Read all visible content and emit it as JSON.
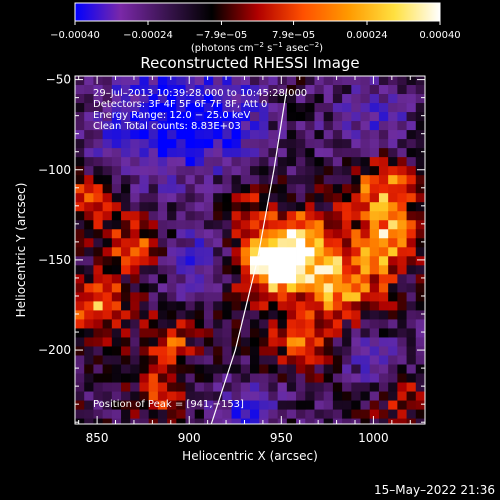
{
  "chart_data": {
    "type": "heatmap",
    "title": "Reconstructed RHESSI Image",
    "xlabel": "Heliocentric X (arcsec)",
    "ylabel": "Heliocentric Y (arcsec)",
    "xlim": [
      838,
      1028
    ],
    "ylim": [
      -241,
      -48
    ],
    "x_ticks": [
      850,
      900,
      950,
      1000
    ],
    "x_tick_labels": [
      "850",
      "900",
      "950",
      "1000"
    ],
    "y_ticks": [
      -50,
      -100,
      -150,
      -200
    ],
    "y_tick_labels": [
      "−50",
      "−100",
      "−150",
      "−200"
    ],
    "colorbar": {
      "range": [
        -0.0004,
        0.0004
      ],
      "ticks": [
        -0.0004,
        -0.00024,
        -7.9e-05,
        7.9e-05,
        0.00024,
        0.0004
      ],
      "tick_labels": [
        "−0.00040",
        "−0.00024",
        "−7.9e−05",
        "7.9e−05",
        "0.00024",
        "0.00040"
      ],
      "colors": [
        "#0000ff",
        "#7a28a8",
        "#3a1450",
        "#000000",
        "#b00000",
        "#ff5000",
        "#ff9a00",
        "#ffe040",
        "#ffffff"
      ]
    },
    "units": {
      "pre": "(photons cm",
      "sup1": "−2",
      "mid1": " s",
      "sup2": "−1",
      "mid2": " asec",
      "sup3": "−2",
      "post": ")"
    },
    "annotations": [
      "29–Jul–2013 10:39:28.000 to  10:45:28.000",
      "Detectors: 3F 4F 5F 6F 7F 8F, Att 0",
      "Energy Range: 12.0 − 25.0 keV",
      "Clean     Total counts: 8.83E+03"
    ],
    "peak_label": "Position of Peak = [941,−153]",
    "peak": {
      "x": 941,
      "y": -153
    },
    "limb_points": [
      [
        912,
        -241
      ],
      [
        925,
        -200
      ],
      [
        937,
        -150
      ],
      [
        946,
        -100
      ],
      [
        953,
        -55
      ]
    ],
    "grid_step": 5,
    "hot_sources": [
      {
        "x": 942,
        "y": -152,
        "amp": 1.0,
        "sigma": 13
      },
      {
        "x": 960,
        "y": -142,
        "amp": 0.75,
        "sigma": 14
      },
      {
        "x": 985,
        "y": -165,
        "amp": 0.72,
        "sigma": 16
      },
      {
        "x": 1005,
        "y": -110,
        "amp": 0.72,
        "sigma": 14
      },
      {
        "x": 1008,
        "y": -140,
        "amp": 0.65,
        "sigma": 11
      },
      {
        "x": 870,
        "y": -140,
        "amp": 0.55,
        "sigma": 12
      },
      {
        "x": 845,
        "y": -115,
        "amp": 0.6,
        "sigma": 10
      },
      {
        "x": 850,
        "y": -175,
        "amp": 0.7,
        "sigma": 11
      },
      {
        "x": 890,
        "y": -195,
        "amp": 0.5,
        "sigma": 10
      },
      {
        "x": 930,
        "y": -120,
        "amp": 0.4,
        "sigma": 10
      },
      {
        "x": 960,
        "y": -195,
        "amp": 0.5,
        "sigma": 12
      },
      {
        "x": 885,
        "y": -225,
        "amp": 0.5,
        "sigma": 10
      },
      {
        "x": 1015,
        "y": -225,
        "amp": 0.45,
        "sigma": 12
      }
    ],
    "cold_sources": [
      {
        "x": 880,
        "y": -75,
        "amp": 0.85,
        "sigma": 25
      },
      {
        "x": 915,
        "y": -70,
        "amp": 0.8,
        "sigma": 20
      },
      {
        "x": 1000,
        "y": -75,
        "amp": 0.55,
        "sigma": 18
      },
      {
        "x": 905,
        "y": -150,
        "amp": 0.6,
        "sigma": 15
      },
      {
        "x": 930,
        "y": -235,
        "amp": 0.65,
        "sigma": 14
      },
      {
        "x": 1005,
        "y": -210,
        "amp": 0.55,
        "sigma": 14
      },
      {
        "x": 990,
        "y": -195,
        "amp": 0.35,
        "sigma": 8
      }
    ]
  },
  "footer": {
    "date": "15–May–2022 21:36"
  }
}
